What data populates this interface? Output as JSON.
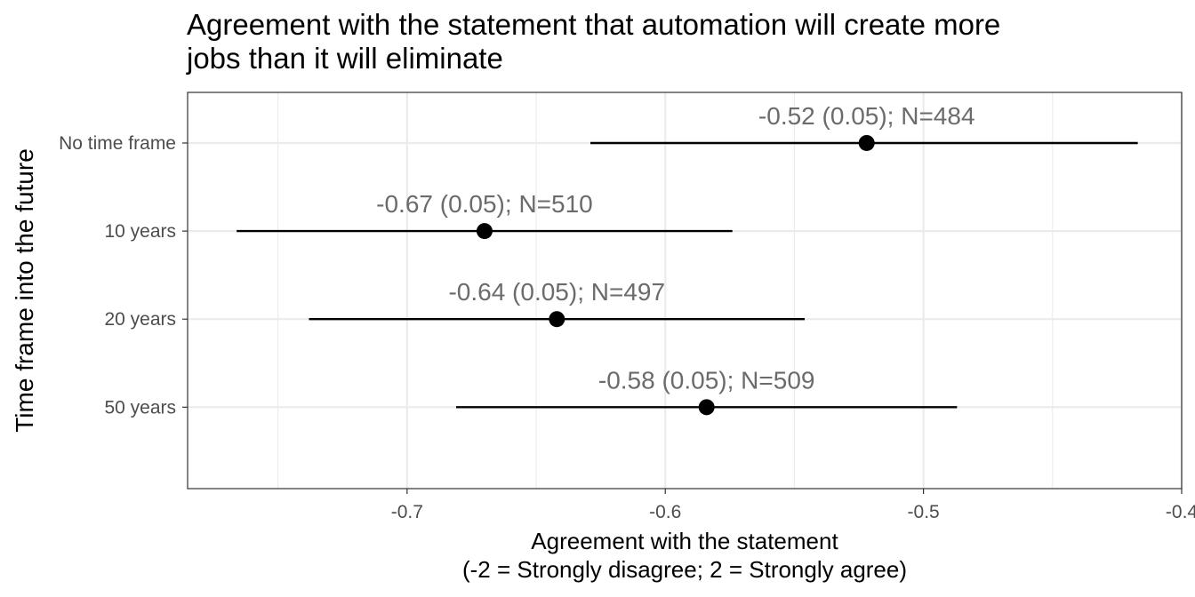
{
  "chart_data": {
    "type": "scatter",
    "title_lines": [
      "Agreement with the statement that automation will create more",
      "jobs than it will eliminate"
    ],
    "xlabel_lines": [
      "Agreement with the statement",
      "(-2 = Strongly disagree; 2 = Strongly agree)"
    ],
    "ylabel": "Time frame into the future",
    "xlim": [
      -0.785,
      -0.4
    ],
    "x_ticks": [
      -0.7,
      -0.6,
      -0.5,
      -0.4
    ],
    "x_tick_labels": [
      "-0.7",
      "-0.6",
      "-0.5",
      "-0.4"
    ],
    "x_minor": [
      -0.75,
      -0.65,
      -0.55,
      -0.45
    ],
    "grid": true,
    "categories": [
      "No time frame",
      "10 years",
      "20 years",
      "50 years"
    ],
    "points": [
      {
        "category": "No time frame",
        "mean": -0.522,
        "ci_low": -0.629,
        "ci_high": -0.417,
        "label": "-0.52 (0.05); N=484"
      },
      {
        "category": "10 years",
        "mean": -0.67,
        "ci_low": -0.766,
        "ci_high": -0.574,
        "label": "-0.67 (0.05); N=510"
      },
      {
        "category": "20 years",
        "mean": -0.642,
        "ci_low": -0.738,
        "ci_high": -0.546,
        "label": "-0.64 (0.05); N=497"
      },
      {
        "category": "50 years",
        "mean": -0.584,
        "ci_low": -0.681,
        "ci_high": -0.487,
        "label": "-0.58 (0.05); N=509"
      }
    ]
  }
}
